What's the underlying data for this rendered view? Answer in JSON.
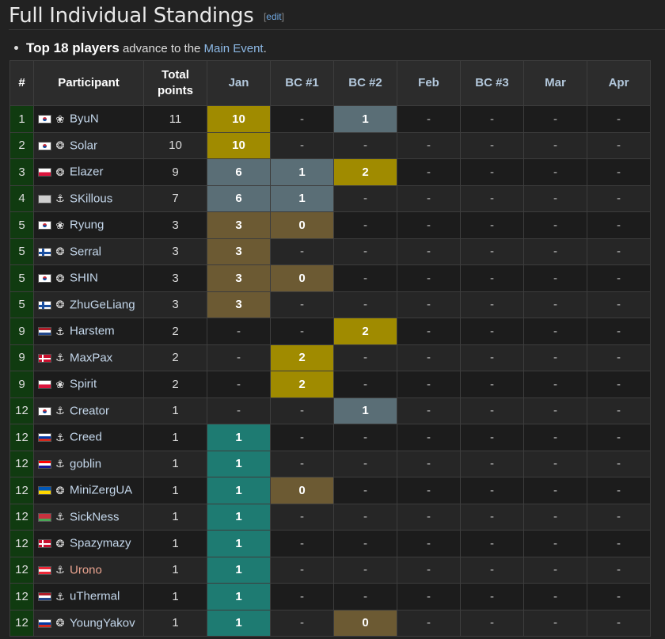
{
  "heading": {
    "title": "Full Individual Standings",
    "edit_open": "[",
    "edit_label": "edit",
    "edit_close": "]"
  },
  "note": {
    "bold": "Top 18 players",
    "text": " advance to the ",
    "link": "Main Event",
    "end": "."
  },
  "columns": [
    "#",
    "Participant",
    "Total points",
    "Jan",
    "BC #1",
    "BC #2",
    "Feb",
    "BC #3",
    "Mar",
    "Apr"
  ],
  "colors": {
    "gold": "#a08b00",
    "silver": "#5a6e76",
    "bronze": "#6c5a33",
    "teal": "#1e7b72",
    "rank_bg": "#103b10"
  },
  "icons": {
    "Z": "zerg-icon",
    "P": "protoss-icon",
    "T": "terran-icon"
  },
  "rows": [
    {
      "rank": "1",
      "flag": "kr",
      "race": "Z",
      "name": "ByuN",
      "total": "11",
      "cells": [
        [
          "10",
          "gold"
        ],
        [
          "-",
          ""
        ],
        [
          "1",
          "silver"
        ],
        [
          "-",
          ""
        ],
        [
          "-",
          ""
        ],
        [
          "-",
          ""
        ],
        [
          "-",
          ""
        ]
      ]
    },
    {
      "rank": "2",
      "flag": "kr",
      "race": "P",
      "name": "Solar",
      "total": "10",
      "cells": [
        [
          "10",
          "gold"
        ],
        [
          "-",
          ""
        ],
        [
          "-",
          ""
        ],
        [
          "-",
          ""
        ],
        [
          "-",
          ""
        ],
        [
          "-",
          ""
        ],
        [
          "-",
          ""
        ]
      ]
    },
    {
      "rank": "3",
      "flag": "pl",
      "race": "P",
      "name": "Elazer",
      "total": "9",
      "cells": [
        [
          "6",
          "silver"
        ],
        [
          "1",
          "silver"
        ],
        [
          "2",
          "gold"
        ],
        [
          "-",
          ""
        ],
        [
          "-",
          ""
        ],
        [
          "-",
          ""
        ],
        [
          "-",
          ""
        ]
      ]
    },
    {
      "rank": "4",
      "flag": "none",
      "race": "T",
      "name": "SKillous",
      "total": "7",
      "cells": [
        [
          "6",
          "silver"
        ],
        [
          "1",
          "silver"
        ],
        [
          "-",
          ""
        ],
        [
          "-",
          ""
        ],
        [
          "-",
          ""
        ],
        [
          "-",
          ""
        ],
        [
          "-",
          ""
        ]
      ]
    },
    {
      "rank": "5",
      "flag": "kr",
      "race": "Z",
      "name": "Ryung",
      "total": "3",
      "cells": [
        [
          "3",
          "bronze"
        ],
        [
          "0",
          "bronze"
        ],
        [
          "-",
          ""
        ],
        [
          "-",
          ""
        ],
        [
          "-",
          ""
        ],
        [
          "-",
          ""
        ],
        [
          "-",
          ""
        ]
      ]
    },
    {
      "rank": "5",
      "flag": "fi",
      "race": "P",
      "name": "Serral",
      "total": "3",
      "cells": [
        [
          "3",
          "bronze"
        ],
        [
          "-",
          ""
        ],
        [
          "-",
          ""
        ],
        [
          "-",
          ""
        ],
        [
          "-",
          ""
        ],
        [
          "-",
          ""
        ],
        [
          "-",
          ""
        ]
      ]
    },
    {
      "rank": "5",
      "flag": "kr",
      "race": "P",
      "name": "SHIN",
      "total": "3",
      "cells": [
        [
          "3",
          "bronze"
        ],
        [
          "0",
          "bronze"
        ],
        [
          "-",
          ""
        ],
        [
          "-",
          ""
        ],
        [
          "-",
          ""
        ],
        [
          "-",
          ""
        ],
        [
          "-",
          ""
        ]
      ]
    },
    {
      "rank": "5",
      "flag": "fi",
      "race": "P",
      "name": "ZhuGeLiang",
      "total": "3",
      "cells": [
        [
          "3",
          "bronze"
        ],
        [
          "-",
          ""
        ],
        [
          "-",
          ""
        ],
        [
          "-",
          ""
        ],
        [
          "-",
          ""
        ],
        [
          "-",
          ""
        ],
        [
          "-",
          ""
        ]
      ]
    },
    {
      "rank": "9",
      "flag": "nl",
      "race": "T",
      "name": "Harstem",
      "total": "2",
      "cells": [
        [
          "-",
          ""
        ],
        [
          "-",
          ""
        ],
        [
          "2",
          "gold"
        ],
        [
          "-",
          ""
        ],
        [
          "-",
          ""
        ],
        [
          "-",
          ""
        ],
        [
          "-",
          ""
        ]
      ]
    },
    {
      "rank": "9",
      "flag": "dk",
      "race": "T",
      "name": "MaxPax",
      "total": "2",
      "cells": [
        [
          "-",
          ""
        ],
        [
          "2",
          "gold"
        ],
        [
          "-",
          ""
        ],
        [
          "-",
          ""
        ],
        [
          "-",
          ""
        ],
        [
          "-",
          ""
        ],
        [
          "-",
          ""
        ]
      ]
    },
    {
      "rank": "9",
      "flag": "pl",
      "race": "Z",
      "name": "Spirit",
      "total": "2",
      "cells": [
        [
          "-",
          ""
        ],
        [
          "2",
          "gold"
        ],
        [
          "-",
          ""
        ],
        [
          "-",
          ""
        ],
        [
          "-",
          ""
        ],
        [
          "-",
          ""
        ],
        [
          "-",
          ""
        ]
      ]
    },
    {
      "rank": "12",
      "flag": "kr",
      "race": "T",
      "name": "Creator",
      "total": "1",
      "cells": [
        [
          "-",
          ""
        ],
        [
          "-",
          ""
        ],
        [
          "1",
          "silver"
        ],
        [
          "-",
          ""
        ],
        [
          "-",
          ""
        ],
        [
          "-",
          ""
        ],
        [
          "-",
          ""
        ]
      ]
    },
    {
      "rank": "12",
      "flag": "ru",
      "race": "T",
      "name": "Creed",
      "total": "1",
      "cells": [
        [
          "1",
          "teal"
        ],
        [
          "-",
          ""
        ],
        [
          "-",
          ""
        ],
        [
          "-",
          ""
        ],
        [
          "-",
          ""
        ],
        [
          "-",
          ""
        ],
        [
          "-",
          ""
        ]
      ]
    },
    {
      "rank": "12",
      "flag": "hr",
      "race": "T",
      "name": "goblin",
      "total": "1",
      "cells": [
        [
          "1",
          "teal"
        ],
        [
          "-",
          ""
        ],
        [
          "-",
          ""
        ],
        [
          "-",
          ""
        ],
        [
          "-",
          ""
        ],
        [
          "-",
          ""
        ],
        [
          "-",
          ""
        ]
      ]
    },
    {
      "rank": "12",
      "flag": "ua",
      "race": "P",
      "name": "MiniZergUA",
      "total": "1",
      "cells": [
        [
          "1",
          "teal"
        ],
        [
          "0",
          "bronze"
        ],
        [
          "-",
          ""
        ],
        [
          "-",
          ""
        ],
        [
          "-",
          ""
        ],
        [
          "-",
          ""
        ],
        [
          "-",
          ""
        ]
      ]
    },
    {
      "rank": "12",
      "flag": "by",
      "race": "T",
      "name": "SickNess",
      "total": "1",
      "cells": [
        [
          "1",
          "teal"
        ],
        [
          "-",
          ""
        ],
        [
          "-",
          ""
        ],
        [
          "-",
          ""
        ],
        [
          "-",
          ""
        ],
        [
          "-",
          ""
        ],
        [
          "-",
          ""
        ]
      ]
    },
    {
      "rank": "12",
      "flag": "dk",
      "race": "P",
      "name": "Spazymazy",
      "total": "1",
      "cells": [
        [
          "1",
          "teal"
        ],
        [
          "-",
          ""
        ],
        [
          "-",
          ""
        ],
        [
          "-",
          ""
        ],
        [
          "-",
          ""
        ],
        [
          "-",
          ""
        ],
        [
          "-",
          ""
        ]
      ]
    },
    {
      "rank": "12",
      "flag": "at",
      "race": "T",
      "name": "Urono",
      "total": "1",
      "cells": [
        [
          "1",
          "teal"
        ],
        [
          "-",
          ""
        ],
        [
          "-",
          ""
        ],
        [
          "-",
          ""
        ],
        [
          "-",
          ""
        ],
        [
          "-",
          ""
        ],
        [
          "-",
          ""
        ]
      ]
    },
    {
      "rank": "12",
      "flag": "nl",
      "race": "T",
      "name": "uThermal",
      "total": "1",
      "cells": [
        [
          "1",
          "teal"
        ],
        [
          "-",
          ""
        ],
        [
          "-",
          ""
        ],
        [
          "-",
          ""
        ],
        [
          "-",
          ""
        ],
        [
          "-",
          ""
        ],
        [
          "-",
          ""
        ]
      ]
    },
    {
      "rank": "12",
      "flag": "ru",
      "race": "P",
      "name": "YoungYakov",
      "total": "1",
      "cells": [
        [
          "1",
          "teal"
        ],
        [
          "-",
          ""
        ],
        [
          "0",
          "bronze"
        ],
        [
          "-",
          ""
        ],
        [
          "-",
          ""
        ],
        [
          "-",
          ""
        ],
        [
          "-",
          ""
        ]
      ]
    }
  ]
}
